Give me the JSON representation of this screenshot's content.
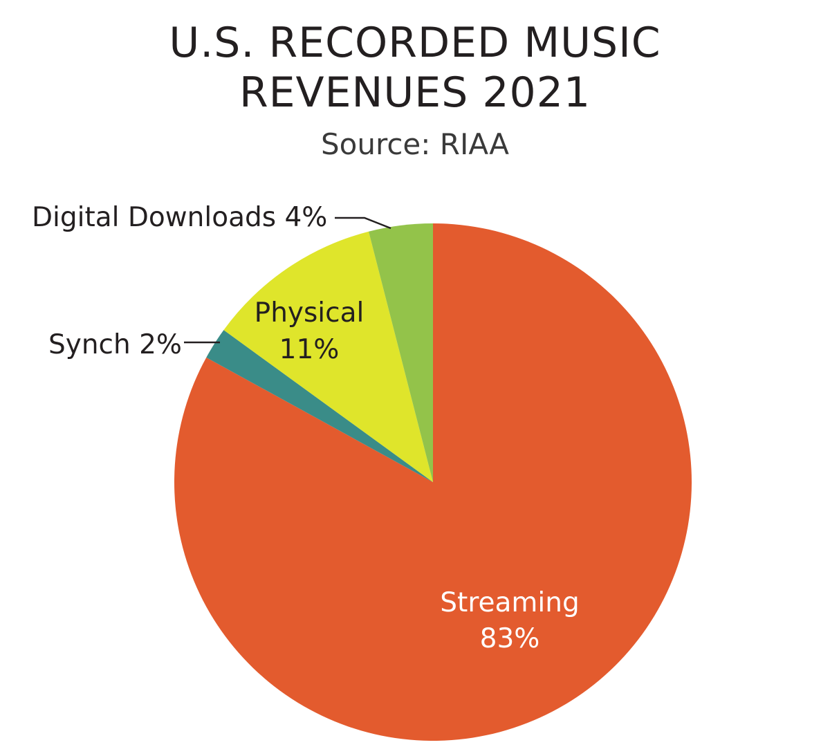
{
  "header": {
    "title_line1": "U.S. RECORDED MUSIC",
    "title_line2": "REVENUES 2021",
    "subtitle": "Source: RIAA"
  },
  "chart_data": {
    "type": "pie",
    "title": "U.S. RECORDED MUSIC REVENUES 2021",
    "subtitle": "Source: RIAA",
    "unit": "%",
    "slices": [
      {
        "name": "Streaming",
        "value": 83,
        "label": "Streaming",
        "value_label": "83%",
        "color": "#e35b2e"
      },
      {
        "name": "Synch",
        "value": 2,
        "label": "Synch 2%",
        "color": "#3a8c88"
      },
      {
        "name": "Physical",
        "value": 11,
        "label": "Physical",
        "value_label": "11%",
        "color": "#dfe52b"
      },
      {
        "name": "Digital Downloads",
        "value": 4,
        "label": "Digital Downloads 4%",
        "color": "#93c34a"
      }
    ],
    "start_angle": "12 o'clock",
    "direction": "clockwise",
    "legend": "none"
  }
}
